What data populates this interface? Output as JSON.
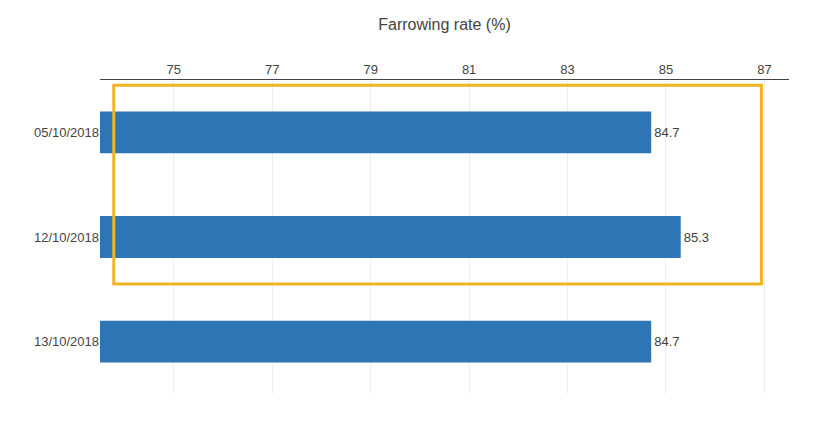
{
  "chart_data": {
    "type": "bar",
    "orientation": "horizontal",
    "categories": [
      "05/10/2018",
      "12/10/2018",
      "13/10/2018"
    ],
    "values": [
      84.7,
      85.3,
      84.7
    ],
    "color": "#2E75B6",
    "xlabel": "Farrowing rate (%)",
    "xlim": [
      73.5,
      87.5
    ],
    "xticks": [
      75,
      77,
      79,
      81,
      83,
      85,
      87
    ],
    "grid": true,
    "data_labels": true
  }
}
